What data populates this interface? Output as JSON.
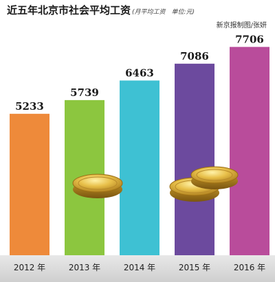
{
  "title": "近五年北京市社会平均工资",
  "subtitle": "(月平均工资　单位:元)",
  "credit": "新京报制图/张妍",
  "chart_data": {
    "type": "bar",
    "categories": [
      "2012 年",
      "2013 年",
      "2014 年",
      "2015 年",
      "2016 年"
    ],
    "values": [
      5233,
      5739,
      6463,
      7086,
      7706
    ],
    "value_labels": [
      "5233",
      "5739",
      "6463",
      "7086",
      "7706"
    ],
    "colors": [
      "#EE8A3A",
      "#8CC63F",
      "#3EC1D3",
      "#6C4A9E",
      "#B94C9B"
    ],
    "title": "近五年北京市社会平均工资",
    "subtitle": "(月平均工资　单位:元)",
    "xlabel": "",
    "ylabel": "",
    "grid": false,
    "legend": "none"
  }
}
